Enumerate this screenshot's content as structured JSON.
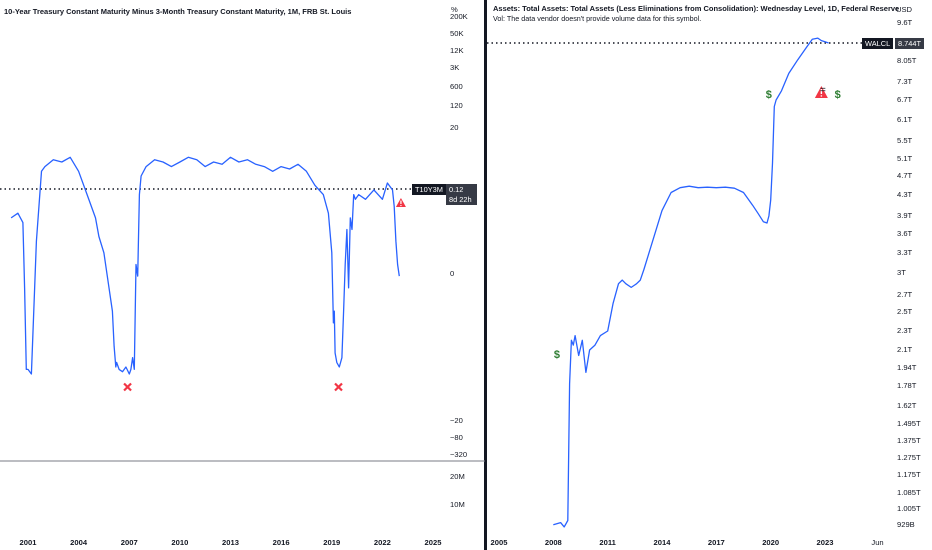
{
  "chart_data": [
    {
      "type": "line",
      "title": "10-Year Treasury Constant Maturity Minus 3-Month Treasury Constant Maturity, 1M, FRB St. Louis",
      "unit_label": "%",
      "line_color": "#2962ff",
      "y_ticks": [
        "200K",
        "50K",
        "12K",
        "3K",
        "600",
        "120",
        "20",
        "0",
        "−20",
        "−80",
        "−320"
      ],
      "volume_ticks": [
        "20M",
        "10M"
      ],
      "x_ticks": [
        "2001",
        "2004",
        "2007",
        "2010",
        "2013",
        "2016",
        "2019",
        "2022",
        "2025"
      ],
      "price_tag": {
        "symbol": "T10Y3M",
        "value": "0.12",
        "countdown": "8d 22h"
      },
      "markers": [
        {
          "kind": "cross",
          "year": 2006.9,
          "color": "#f23645"
        },
        {
          "kind": "cross",
          "year": 2019.4,
          "color": "#f23645"
        },
        {
          "kind": "warning",
          "year": 2023.1,
          "color": "#f23645"
        }
      ],
      "series": [
        {
          "x": [
            2000.0,
            2000.4,
            2000.7,
            2000.8,
            2000.9,
            2001.0,
            2001.2,
            2001.5,
            2001.8,
            2002.0,
            2002.5,
            2003.0,
            2003.5,
            2004.0,
            2004.5,
            2005.0,
            2005.2,
            2005.5,
            2005.8,
            2006.0,
            2006.1,
            2006.2,
            2006.25,
            2006.4,
            2006.6,
            2006.8,
            2007.0,
            2007.1,
            2007.2,
            2007.3,
            2007.4,
            2007.5,
            2007.6,
            2007.7,
            2008.0,
            2008.5,
            2009.0,
            2009.5,
            2010.0,
            2010.5,
            2011.0,
            2011.5,
            2012.0,
            2012.5,
            2013.0,
            2013.5,
            2014.0,
            2014.5,
            2015.0,
            2015.5,
            2016.0,
            2016.5,
            2017.0,
            2017.5,
            2018.0,
            2018.5,
            2018.8,
            2019.0,
            2019.1,
            2019.15,
            2019.2,
            2019.3,
            2019.45,
            2019.6,
            2019.7,
            2019.8,
            2019.9,
            2020.0,
            2020.1,
            2020.2,
            2020.3,
            2020.4,
            2020.6,
            2021.0,
            2021.5,
            2022.0,
            2022.3,
            2022.5,
            2022.6,
            2022.7,
            2022.8,
            2022.9,
            2023.0
          ],
          "y_level": [
            0.7,
            0.72,
            0.68,
            0.4,
            0.05,
            0.05,
            0.03,
            0.6,
            0.9,
            0.92,
            0.95,
            0.94,
            0.96,
            0.9,
            0.8,
            0.7,
            0.62,
            0.55,
            0.4,
            0.3,
            0.15,
            0.06,
            0.08,
            0.05,
            0.04,
            0.06,
            0.03,
            0.05,
            0.1,
            0.05,
            0.5,
            0.45,
            0.8,
            0.88,
            0.92,
            0.95,
            0.94,
            0.92,
            0.94,
            0.96,
            0.95,
            0.92,
            0.94,
            0.93,
            0.96,
            0.94,
            0.95,
            0.93,
            0.92,
            0.9,
            0.92,
            0.91,
            0.93,
            0.9,
            0.84,
            0.8,
            0.72,
            0.55,
            0.25,
            0.3,
            0.12,
            0.08,
            0.06,
            0.1,
            0.3,
            0.5,
            0.65,
            0.4,
            0.7,
            0.65,
            0.8,
            0.78,
            0.8,
            0.78,
            0.82,
            0.78,
            0.85,
            0.83,
            0.82,
            0.75,
            0.6,
            0.5,
            0.45
          ]
        }
      ]
    },
    {
      "type": "line",
      "title": "Assets: Total Assets: Total Assets (Less Eliminations from Consolidation): Wednesday Level, 1D, Federal Reserve",
      "subtitle": "Vol: The data vendor doesn't provide volume data for this symbol.",
      "unit_label": "USD",
      "line_color": "#2962ff",
      "y_ticks": [
        "9.6T",
        "8.05T",
        "7.3T",
        "6.7T",
        "6.1T",
        "5.5T",
        "5.1T",
        "4.7T",
        "4.3T",
        "3.9T",
        "3.6T",
        "3.3T",
        "3T",
        "2.7T",
        "2.5T",
        "2.3T",
        "2.1T",
        "1.94T",
        "1.78T",
        "1.62T",
        "1.495T",
        "1.375T",
        "1.275T",
        "1.175T",
        "1.085T",
        "1.005T",
        "929B"
      ],
      "x_ticks": [
        "2005",
        "2008",
        "2011",
        "2014",
        "2017",
        "2020",
        "2023",
        "Jun"
      ],
      "price_tag": {
        "symbol": "WALCL",
        "value": "8.744T"
      },
      "markers": [
        {
          "kind": "dividend",
          "year": 2008.2,
          "color": "#2e7d32"
        },
        {
          "kind": "dividend",
          "year": 2019.9,
          "color": "#2e7d32"
        },
        {
          "kind": "warning",
          "year": 2022.8,
          "color": "#f23645"
        },
        {
          "kind": "dividend",
          "year": 2023.7,
          "color": "#2e7d32"
        }
      ],
      "series": [
        {
          "x": [
            2008.0,
            2008.4,
            2008.6,
            2008.8,
            2008.9,
            2009.0,
            2009.1,
            2009.2,
            2009.4,
            2009.6,
            2009.8,
            2010.0,
            2010.3,
            2010.6,
            2011.0,
            2011.3,
            2011.6,
            2011.8,
            2012.0,
            2012.3,
            2012.6,
            2012.8,
            2013.0,
            2013.5,
            2014.0,
            2014.5,
            2015.0,
            2015.5,
            2016.0,
            2016.5,
            2017.0,
            2017.5,
            2018.0,
            2018.5,
            2019.0,
            2019.3,
            2019.6,
            2019.8,
            2019.9,
            2020.0,
            2020.1,
            2020.2,
            2020.3,
            2020.6,
            2021.0,
            2021.5,
            2022.0,
            2022.3,
            2022.6,
            2022.8,
            2023.0,
            2023.2
          ],
          "y": [
            0.93,
            0.94,
            0.92,
            0.95,
            1.8,
            2.2,
            2.15,
            2.25,
            2.05,
            2.2,
            1.9,
            2.1,
            2.15,
            2.25,
            2.3,
            2.6,
            2.85,
            2.9,
            2.85,
            2.8,
            2.85,
            2.9,
            3.05,
            3.5,
            4.0,
            4.35,
            4.45,
            4.48,
            4.45,
            4.46,
            4.45,
            4.46,
            4.44,
            4.35,
            4.1,
            3.95,
            3.8,
            3.78,
            3.9,
            4.2,
            5.0,
            6.5,
            6.7,
            7.0,
            7.6,
            8.1,
            8.6,
            8.9,
            8.95,
            8.85,
            8.8,
            8.75
          ]
        }
      ]
    }
  ]
}
